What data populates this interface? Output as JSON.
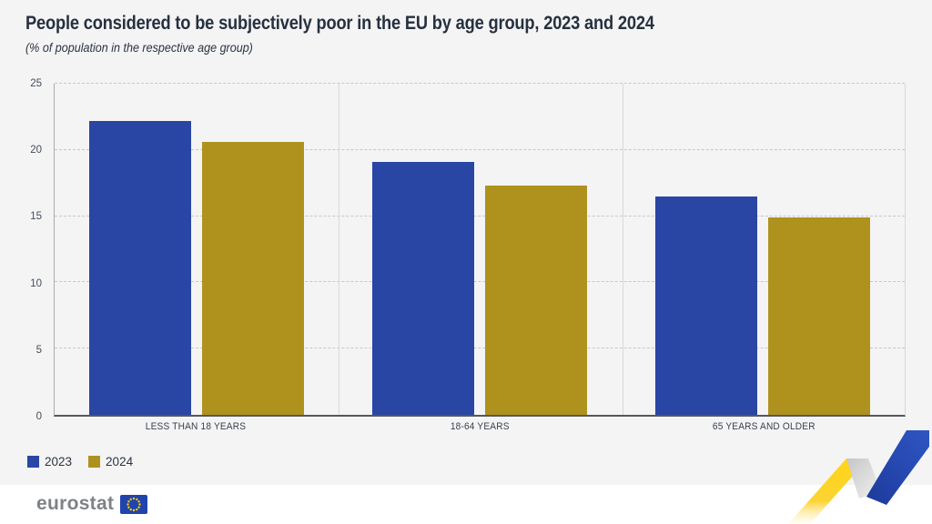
{
  "header": {
    "subtitle": "(% of population in the respective age group)"
  },
  "chart_data": {
    "type": "bar",
    "title": "People considered to be subjectively poor in the EU by age group, 2023 and 2024",
    "subtitle": "(% of population in the respective age group)",
    "categories": [
      "LESS THAN 18 YEARS",
      "18-64 YEARS",
      "65 YEARS AND OLDER"
    ],
    "series": [
      {
        "name": "2023",
        "color": "#2a46a4",
        "values": [
          22.2,
          19.1,
          16.5
        ]
      },
      {
        "name": "2024",
        "color": "#af921e",
        "values": [
          20.6,
          17.3,
          14.9
        ]
      }
    ],
    "xlabel": "",
    "ylabel": "% of population",
    "ylim": [
      0,
      25
    ],
    "yticks": [
      0,
      5,
      10,
      15,
      20,
      25
    ],
    "grid": "horizontal-dashed",
    "legend_position": "bottom-left"
  },
  "legend": {
    "items": [
      {
        "label": "2023",
        "color": "#2a46a4"
      },
      {
        "label": "2024",
        "color": "#af921e"
      }
    ]
  },
  "footer": {
    "logo_text": "eurostat"
  },
  "colors": {
    "page_bg": "#f4f4f5",
    "footer_bg": "#ffffff",
    "title_text": "#26303f",
    "axis_dark": "#54575c",
    "axis_light": "#a6a9ad",
    "gridline": "#c7c8ca",
    "separator": "#d7d8da",
    "flag_blue": "#2143ac",
    "star_yellow": "#ffcc00",
    "ribbon_yellow": "#ffd514",
    "ribbon_gray": "#cfcfcf",
    "ribbon_blue": "#2747b0"
  }
}
